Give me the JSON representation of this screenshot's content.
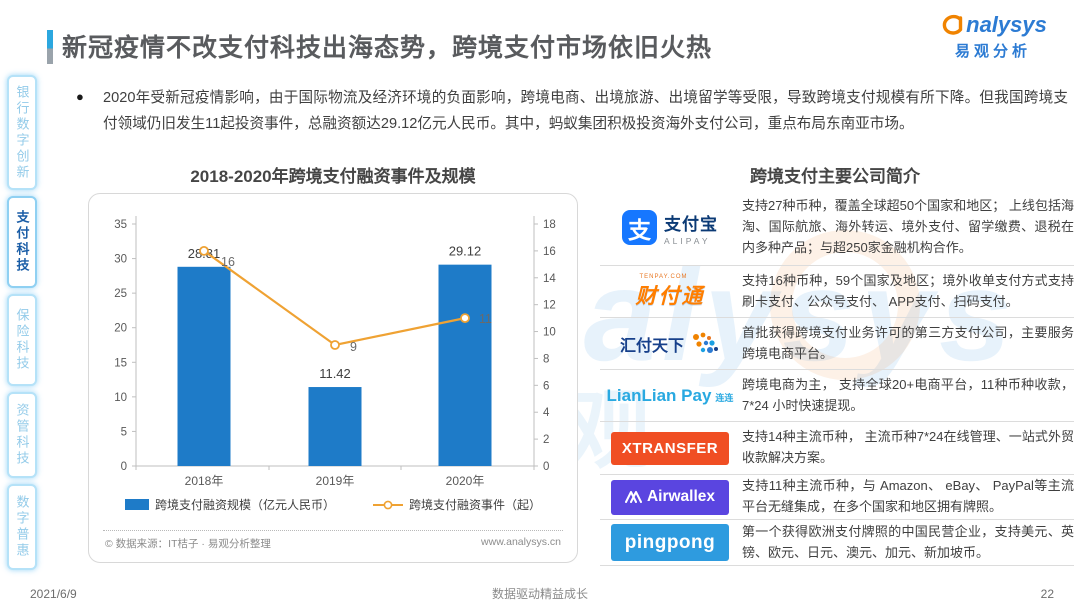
{
  "header": {
    "title": "新冠疫情不改支付科技出海态势，跨境支付市场依旧火热",
    "logo": {
      "wordmark": "analysys",
      "cn": "易观分析"
    }
  },
  "sidebar": {
    "items": [
      {
        "label": "银行数字创新",
        "active": false
      },
      {
        "label": "支付科技",
        "active": true
      },
      {
        "label": "保险科技",
        "active": false
      },
      {
        "label": "资管科技",
        "active": false
      },
      {
        "label": "数字普惠",
        "active": false
      }
    ]
  },
  "intro": {
    "bullet": "●",
    "text": "2020年受新冠疫情影响，由于国际物流及经济环境的负面影响，跨境电商、出境旅游、出境留学等受限，导致跨境支付规模有所下降。但我国跨境支付领域仍旧发生11起投资事件，总融资额达29.12亿元人民币。其中，蚂蚁集团积极投资海外支付公司，重点布局东南亚市场。"
  },
  "chart": {
    "source_left": "© 数据来源：IT桔子 · 易观分析整理",
    "source_right": "www.analysys.cn"
  },
  "chart_data": {
    "type": "bar+line",
    "title": "2018-2020年跨境支付融资事件及规模",
    "categories": [
      "2018年",
      "2019年",
      "2020年"
    ],
    "series": [
      {
        "name": "跨境支付融资规模（亿元人民币）",
        "type": "bar",
        "axis": "left",
        "values": [
          28.81,
          11.42,
          29.12
        ],
        "color": "#1e7bc8"
      },
      {
        "name": "跨境支付融资事件（起）",
        "type": "line",
        "axis": "right",
        "values": [
          16,
          9,
          11
        ],
        "color": "#efa233"
      }
    ],
    "left_axis": {
      "min": 0,
      "max": 35,
      "ticks": [
        0,
        5,
        10,
        15,
        20,
        25,
        30,
        35
      ]
    },
    "right_axis": {
      "min": 0,
      "max": 18,
      "ticks": [
        0,
        2,
        4,
        6,
        8,
        10,
        12,
        14,
        16,
        18
      ]
    },
    "grid": false,
    "legend_position": "bottom"
  },
  "companies": {
    "title": "跨境支付主要公司简介",
    "rows": [
      {
        "logo": "alipay",
        "brand": "支付宝",
        "badge": "ALIPAY",
        "desc": "支持27种币种，覆盖全球超50个国家和地区； 上线包括海淘、国际航旅、海外转运、境外支付、留学缴费、退税在内多种产品；与超250家金融机构合作。"
      },
      {
        "logo": "tenpay",
        "brand": "财付通",
        "badge": "TENPAY.COM",
        "desc": "支持16种币种，59个国家及地区；境外收单支付方式支持刷卡支付、公众号支付、 APP支付、扫码支付。"
      },
      {
        "logo": "huifu",
        "brand": "汇付天下",
        "badge": "",
        "desc": "首批获得跨境支付业务许可的第三方支付公司，主要服务跨境电商平台。"
      },
      {
        "logo": "lianlian",
        "brand": "LianLian Pay",
        "badge": "连连",
        "desc": "跨境电商为主， 支持全球20+电商平台，11种币种收款，7*24 小时快速提现。"
      },
      {
        "logo": "xtransfer",
        "brand": "XTRANSFER",
        "badge": "",
        "desc": "支持14种主流币种， 主流币种7*24在线管理、一站式外贸收款解决方案。"
      },
      {
        "logo": "airwallex",
        "brand": "Airwallex",
        "badge": "",
        "desc": "支持11种主流币种，与 Amazon、 eBay、 PayPal等主流平台无缝集成，在多个国家和地区拥有牌照。"
      },
      {
        "logo": "pingpong",
        "brand": "pingpong",
        "badge": "",
        "desc": "第一个获得欧洲支付牌照的中国民营企业，支持美元、英镑、欧元、日元、澳元、加元、新加坡币。"
      }
    ]
  },
  "footer": {
    "date": "2021/6/9",
    "slogan": "数据驱动精益成长",
    "page": "22"
  },
  "watermark": {
    "text_en": "analysys",
    "text_cn": "易观"
  }
}
